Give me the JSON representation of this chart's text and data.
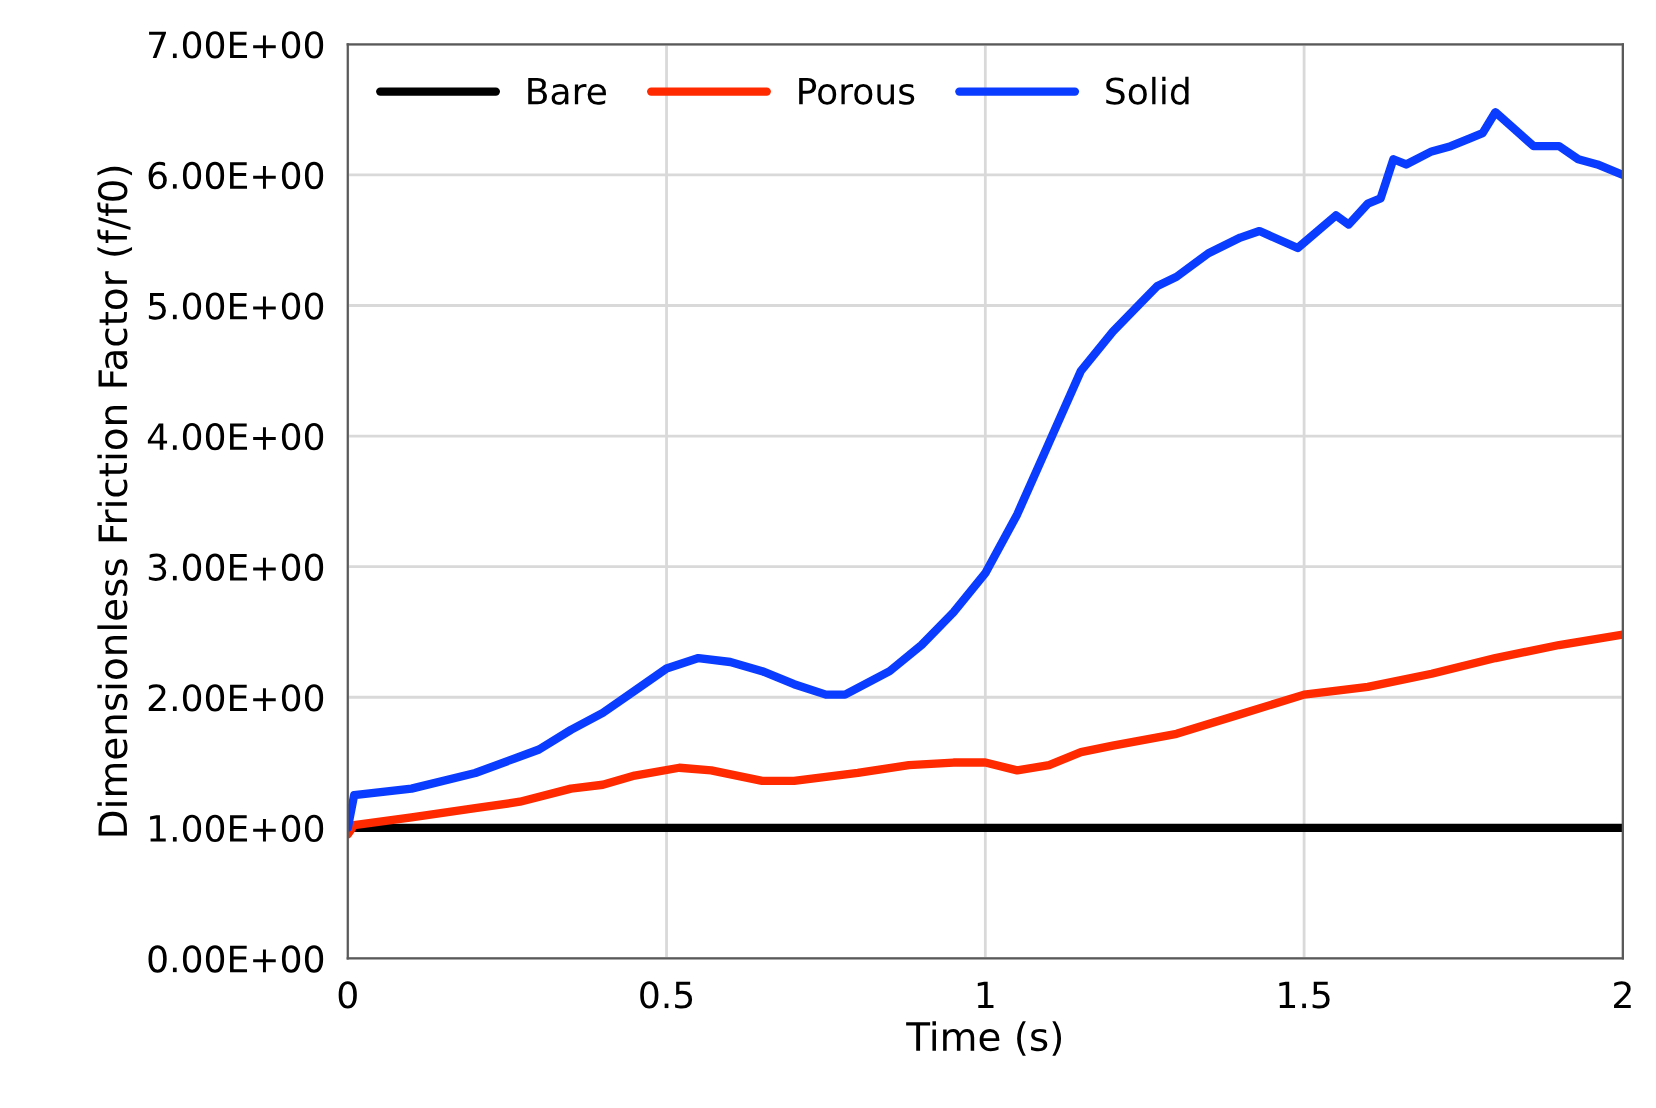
{
  "chart_data": {
    "type": "line",
    "xlabel": "Time (s)",
    "ylabel": "Dimensionless Friction Factor (f/f0)",
    "xlim": [
      0,
      2
    ],
    "xticks": [
      0,
      0.5,
      1,
      1.5,
      2
    ],
    "ylim": [
      0,
      7
    ],
    "yticks": [
      {
        "value": 0,
        "label": "0.00E+00"
      },
      {
        "value": 1,
        "label": "1.00E+00"
      },
      {
        "value": 2,
        "label": "2.00E+00"
      },
      {
        "value": 3,
        "label": "3.00E+00"
      },
      {
        "value": 4,
        "label": "4.00E+00"
      },
      {
        "value": 5,
        "label": "5.00E+00"
      },
      {
        "value": 6,
        "label": "6.00E+00"
      },
      {
        "value": 7,
        "label": "7.00E+00"
      }
    ],
    "grid": true,
    "legend": "top left",
    "marker": "none",
    "line_style": "solid",
    "series": [
      {
        "name": "Bare",
        "color": "#000000",
        "x": [
          0,
          2
        ],
        "values": [
          1.0,
          1.0
        ]
      },
      {
        "name": "Porous",
        "color": "#ff2a00",
        "x": [
          0,
          0.01,
          0.1,
          0.2,
          0.27,
          0.35,
          0.4,
          0.45,
          0.52,
          0.57,
          0.65,
          0.7,
          0.8,
          0.88,
          0.95,
          1.0,
          1.05,
          1.1,
          1.15,
          1.2,
          1.3,
          1.4,
          1.5,
          1.6,
          1.7,
          1.8,
          1.9,
          2.0
        ],
        "values": [
          0.95,
          1.02,
          1.08,
          1.15,
          1.2,
          1.3,
          1.33,
          1.4,
          1.46,
          1.44,
          1.36,
          1.36,
          1.42,
          1.48,
          1.5,
          1.5,
          1.44,
          1.48,
          1.58,
          1.63,
          1.72,
          1.87,
          2.02,
          2.08,
          2.18,
          2.3,
          2.4,
          2.48
        ]
      },
      {
        "name": "Solid",
        "color": "#0a3cff",
        "x": [
          0,
          0.01,
          0.1,
          0.2,
          0.3,
          0.35,
          0.4,
          0.45,
          0.5,
          0.55,
          0.6,
          0.65,
          0.7,
          0.75,
          0.78,
          0.85,
          0.9,
          0.95,
          1.0,
          1.05,
          1.1,
          1.15,
          1.2,
          1.25,
          1.27,
          1.3,
          1.35,
          1.4,
          1.43,
          1.49,
          1.55,
          1.57,
          1.6,
          1.62,
          1.64,
          1.66,
          1.7,
          1.73,
          1.76,
          1.78,
          1.8,
          1.83,
          1.86,
          1.9,
          1.93,
          1.96,
          2.0
        ],
        "values": [
          1.0,
          1.25,
          1.3,
          1.42,
          1.6,
          1.75,
          1.88,
          2.05,
          2.22,
          2.3,
          2.27,
          2.2,
          2.1,
          2.02,
          2.02,
          2.2,
          2.4,
          2.65,
          2.95,
          3.4,
          3.95,
          4.5,
          4.8,
          5.05,
          5.15,
          5.22,
          5.4,
          5.52,
          5.57,
          5.44,
          5.69,
          5.62,
          5.78,
          5.82,
          6.12,
          6.08,
          6.18,
          6.22,
          6.28,
          6.32,
          6.48,
          6.35,
          6.22,
          6.22,
          6.12,
          6.08,
          6.0
        ]
      }
    ]
  }
}
